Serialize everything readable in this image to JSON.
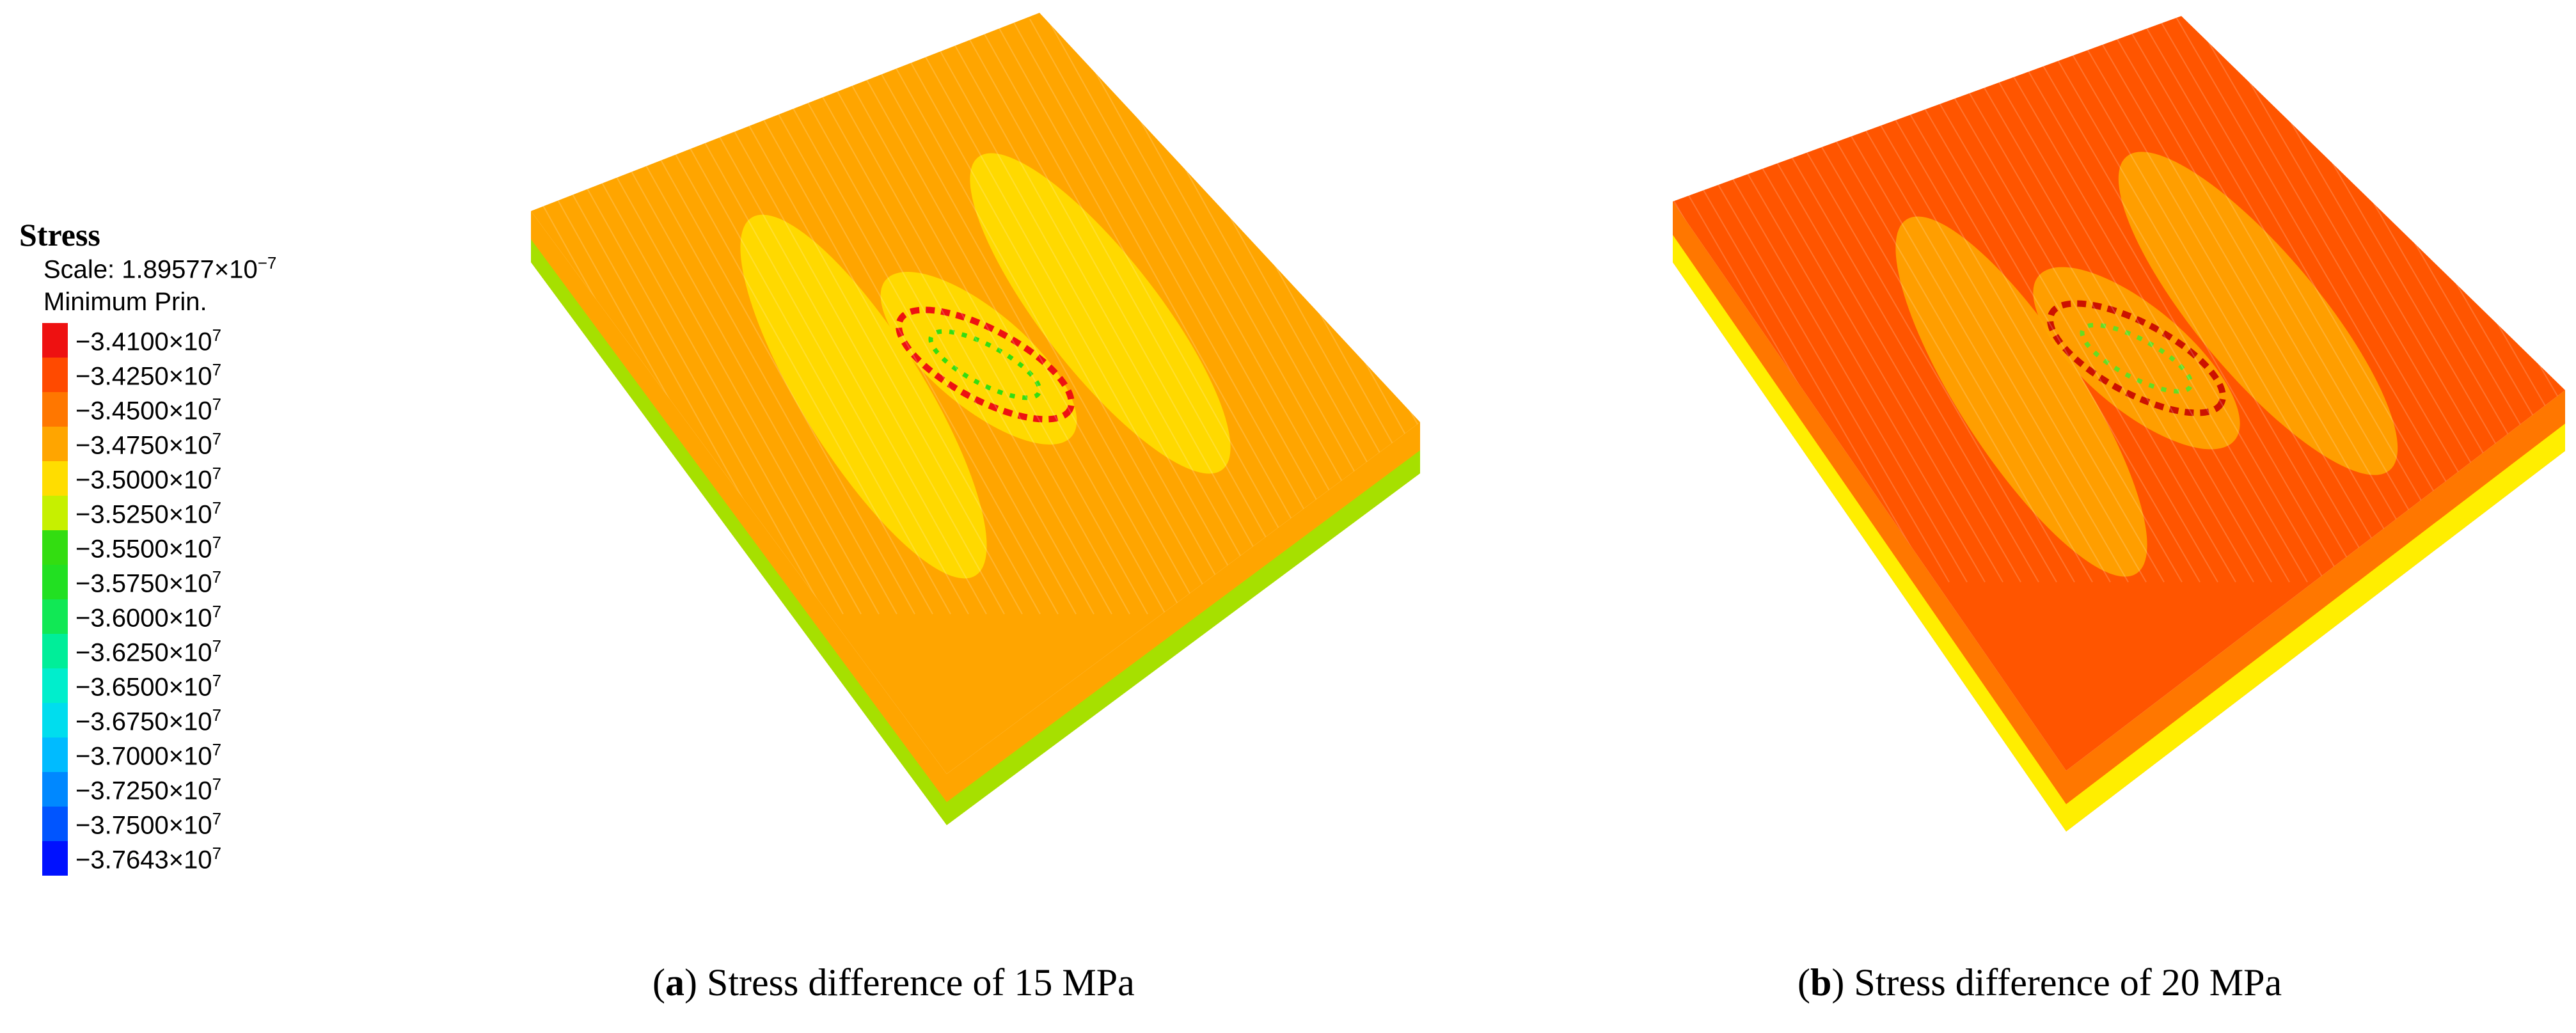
{
  "legend": {
    "title": "Stress",
    "scale_prefix": "Scale: 1.89577×10",
    "scale_exponent": "−7",
    "type": "Minimum Prin.",
    "entries": [
      {
        "mantissa": "−3.4100×10",
        "exp": "7",
        "color": "#ee1111"
      },
      {
        "mantissa": "−3.4250×10",
        "exp": "7",
        "color": "#ff4a00"
      },
      {
        "mantissa": "−3.4500×10",
        "exp": "7",
        "color": "#ff7700"
      },
      {
        "mantissa": "−3.4750×10",
        "exp": "7",
        "color": "#ffa500"
      },
      {
        "mantissa": "−3.5000×10",
        "exp": "7",
        "color": "#ffdd00"
      },
      {
        "mantissa": "−3.5250×10",
        "exp": "7",
        "color": "#c6f000"
      },
      {
        "mantissa": "−3.5500×10",
        "exp": "7",
        "color": "#33dd11"
      },
      {
        "mantissa": "−3.5750×10",
        "exp": "7",
        "color": "#22e022"
      },
      {
        "mantissa": "−3.6000×10",
        "exp": "7",
        "color": "#11e855"
      },
      {
        "mantissa": "−3.6250×10",
        "exp": "7",
        "color": "#00ee99"
      },
      {
        "mantissa": "−3.6500×10",
        "exp": "7",
        "color": "#00eecc"
      },
      {
        "mantissa": "−3.6750×10",
        "exp": "7",
        "color": "#00ddee"
      },
      {
        "mantissa": "−3.7000×10",
        "exp": "7",
        "color": "#00bbff"
      },
      {
        "mantissa": "−3.7250×10",
        "exp": "7",
        "color": "#0088ff"
      },
      {
        "mantissa": "−3.7500×10",
        "exp": "7",
        "color": "#0055ff"
      },
      {
        "mantissa": "−3.7643×10",
        "exp": "7",
        "color": "#0011ff"
      }
    ]
  },
  "panels": [
    {
      "id": "a",
      "caption_letter": "a",
      "caption_text": " Stress difference of 15 MPa",
      "top_color": "#ffa500",
      "band_color": "#ffdd00",
      "side_color": "#ffa500",
      "side_base_color": "#a6e000",
      "core_color": "#33dd11",
      "crack_color": "#ee1111"
    },
    {
      "id": "b",
      "caption_letter": "b",
      "caption_text": " Stress difference of 20 MPa",
      "top_color": "#ff5500",
      "band_color": "#ffa500",
      "side_color": "#ff7700",
      "side_base_color": "#ffee00",
      "core_color": "#66dd22",
      "crack_color": "#cc1100"
    }
  ]
}
